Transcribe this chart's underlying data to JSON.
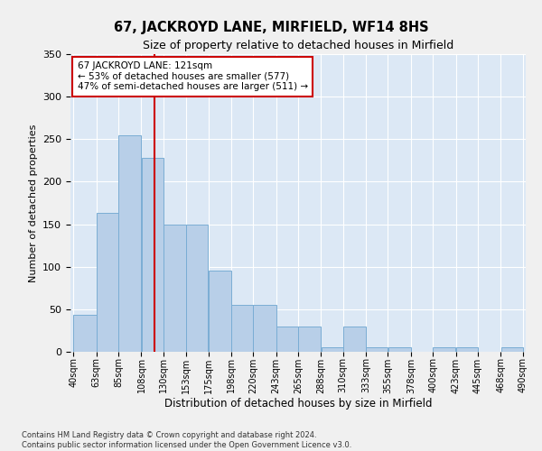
{
  "title": "67, JACKROYD LANE, MIRFIELD, WF14 8HS",
  "subtitle": "Size of property relative to detached houses in Mirfield",
  "xlabel": "Distribution of detached houses by size in Mirfield",
  "ylabel": "Number of detached properties",
  "footer_line1": "Contains HM Land Registry data © Crown copyright and database right 2024.",
  "footer_line2": "Contains public sector information licensed under the Open Government Licence v3.0.",
  "annotation_line1": "67 JACKROYD LANE: 121sqm",
  "annotation_line2": "← 53% of detached houses are smaller (577)",
  "annotation_line3": "47% of semi-detached houses are larger (511) →",
  "property_size": 121,
  "bin_edges": [
    40,
    63,
    85,
    108,
    130,
    153,
    175,
    198,
    220,
    243,
    265,
    288,
    310,
    333,
    355,
    378,
    400,
    423,
    445,
    468,
    490
  ],
  "bar_values": [
    43,
    163,
    255,
    228,
    150,
    150,
    95,
    55,
    55,
    30,
    30,
    5,
    30,
    5,
    5,
    0,
    5,
    5,
    0,
    5
  ],
  "bar_color": "#b8cfe8",
  "bar_edge_color": "#7aadd4",
  "vline_color": "#cc0000",
  "vline_x": 121,
  "background_color": "#dce8f5",
  "grid_color": "#ffffff",
  "fig_background": "#f0f0f0",
  "ylim": [
    0,
    350
  ],
  "yticks": [
    0,
    50,
    100,
    150,
    200,
    250,
    300,
    350
  ]
}
